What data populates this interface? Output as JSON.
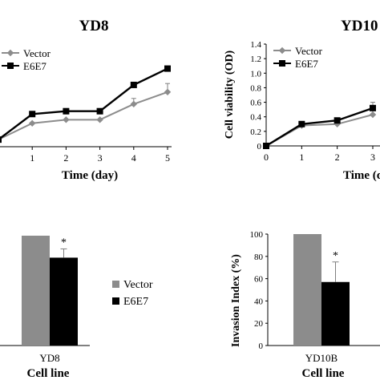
{
  "colors": {
    "vector": "#8c8c8c",
    "e6e7": "#000000",
    "error_bar": "#7f7f7f"
  },
  "legend_bottom": {
    "vector": "Vector",
    "e6e7": "E6E7"
  },
  "chart_data": [
    {
      "id": "yd8_viability",
      "type": "line",
      "title": "YD8",
      "xlabel": "Time (day)",
      "ylabel": "",
      "x": [
        0,
        1,
        2,
        3,
        4,
        5
      ],
      "xlim": [
        0,
        5
      ],
      "ylim": [
        0,
        1.4
      ],
      "series": [
        {
          "name": "Vector",
          "values": [
            0.1,
            0.33,
            0.38,
            0.38,
            0.6,
            0.77
          ],
          "error": [
            0,
            0,
            0,
            0,
            0.08,
            0.12
          ]
        },
        {
          "name": "E6E7",
          "values": [
            0.1,
            0.46,
            0.5,
            0.5,
            0.87,
            1.1
          ],
          "error": [
            0,
            0,
            0,
            0,
            0,
            0
          ]
        }
      ],
      "legend": "top-left"
    },
    {
      "id": "yd10_viability",
      "type": "line",
      "title": "YD10",
      "xlabel": "Time (d",
      "ylabel": "Cell viability (OD)",
      "x": [
        0,
        1,
        2,
        3
      ],
      "xlim": [
        0,
        3
      ],
      "yticks": [
        "0",
        "0.2",
        "0.4",
        "0.6",
        "0.8",
        "1.0",
        "1.2",
        "1.4"
      ],
      "ylim": [
        0,
        1.4
      ],
      "series": [
        {
          "name": "Vector",
          "values": [
            0.0,
            0.28,
            0.3,
            0.43
          ],
          "error": [
            0,
            0,
            0,
            0.1
          ]
        },
        {
          "name": "E6E7",
          "values": [
            0.0,
            0.3,
            0.35,
            0.52
          ],
          "error": [
            0,
            0,
            0,
            0.08
          ]
        }
      ],
      "legend": "top-left"
    },
    {
      "id": "yd8_invasion",
      "type": "bar",
      "categories": [
        "YD8"
      ],
      "xlabel": "Cell line",
      "ylabel": "",
      "ylim": [
        0,
        100
      ],
      "series": [
        {
          "name": "Vector",
          "values": [
            100
          ],
          "error": [
            0
          ]
        },
        {
          "name": "E6E7",
          "values": [
            80
          ],
          "error": [
            8
          ]
        }
      ],
      "annotations": [
        "*"
      ]
    },
    {
      "id": "yd10b_invasion",
      "type": "bar",
      "categories": [
        "YD10B"
      ],
      "xlabel": "Cell line",
      "ylabel": "Invasion Index (%)",
      "yticks": [
        "0",
        "20",
        "40",
        "60",
        "80",
        "100"
      ],
      "ylim": [
        0,
        100
      ],
      "series": [
        {
          "name": "Vector",
          "values": [
            100
          ],
          "error": [
            0
          ]
        },
        {
          "name": "E6E7",
          "values": [
            57
          ],
          "error": [
            18
          ]
        }
      ],
      "annotations": [
        "*"
      ]
    }
  ]
}
